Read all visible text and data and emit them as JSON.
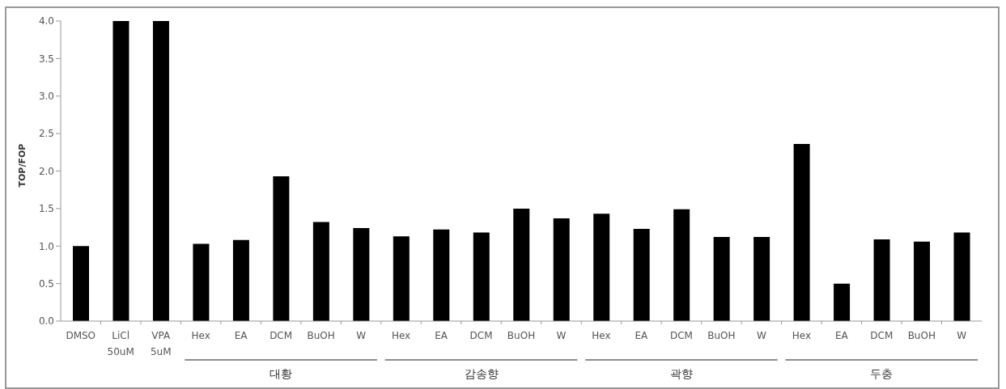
{
  "chart_data": {
    "type": "bar",
    "ylabel": "TOP/FOP",
    "categories": [
      "DMSO",
      "LiCl\n50uM",
      "VPA\n5uM",
      "Hex",
      "EA",
      "DCM",
      "BuOH",
      "W",
      "Hex",
      "EA",
      "DCM",
      "BuOH",
      "W",
      "Hex",
      "EA",
      "DCM",
      "BuOH",
      "W",
      "Hex",
      "EA",
      "DCM",
      "BuOH",
      "W"
    ],
    "values": [
      1.0,
      4.0,
      4.0,
      1.03,
      1.08,
      1.93,
      1.32,
      1.24,
      1.13,
      1.22,
      1.18,
      1.5,
      1.37,
      1.43,
      1.23,
      1.49,
      1.12,
      1.12,
      2.36,
      0.5,
      1.09,
      1.06,
      1.18
    ],
    "color": "#000000",
    "ylim": [
      0,
      4
    ],
    "yticks": [
      {
        "value": 0,
        "label": "0.0"
      },
      {
        "value": 0.5,
        "label": "0.5"
      },
      {
        "value": 1,
        "label": "1.0"
      },
      {
        "value": 1.5,
        "label": "1.5"
      },
      {
        "value": 2,
        "label": "2.0"
      },
      {
        "value": 2.5,
        "label": "2.5"
      },
      {
        "value": 3,
        "label": "3.0"
      },
      {
        "value": 3.5,
        "label": "3.5"
      },
      {
        "value": 4,
        "label": "4.0"
      }
    ],
    "annotations": [
      "대황",
      "감송향",
      "곽향",
      "두충"
    ]
  }
}
